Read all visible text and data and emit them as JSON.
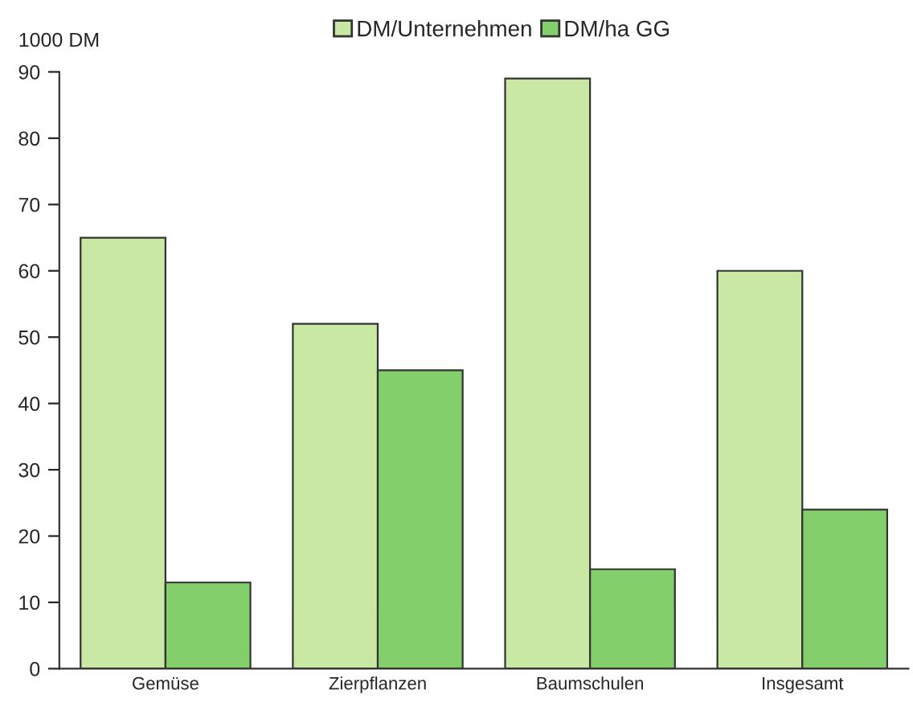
{
  "chart_data": {
    "type": "bar",
    "categories": [
      "Gemüse",
      "Zierpflanzen",
      "Baumschulen",
      "Insgesamt"
    ],
    "ylabel": "1000 DM",
    "series": [
      {
        "name": "DM/Unternehmen",
        "color": "#c9e8a4",
        "values": [
          65,
          52,
          89,
          60
        ]
      },
      {
        "name": "DM/ha GG",
        "color": "#82cf6c",
        "values": [
          13,
          45,
          15,
          24
        ]
      }
    ],
    "ylim": [
      0,
      90
    ],
    "yticks": [
      0,
      10,
      20,
      30,
      40,
      50,
      60,
      70,
      80,
      90
    ],
    "grid": false,
    "legend": "top"
  }
}
